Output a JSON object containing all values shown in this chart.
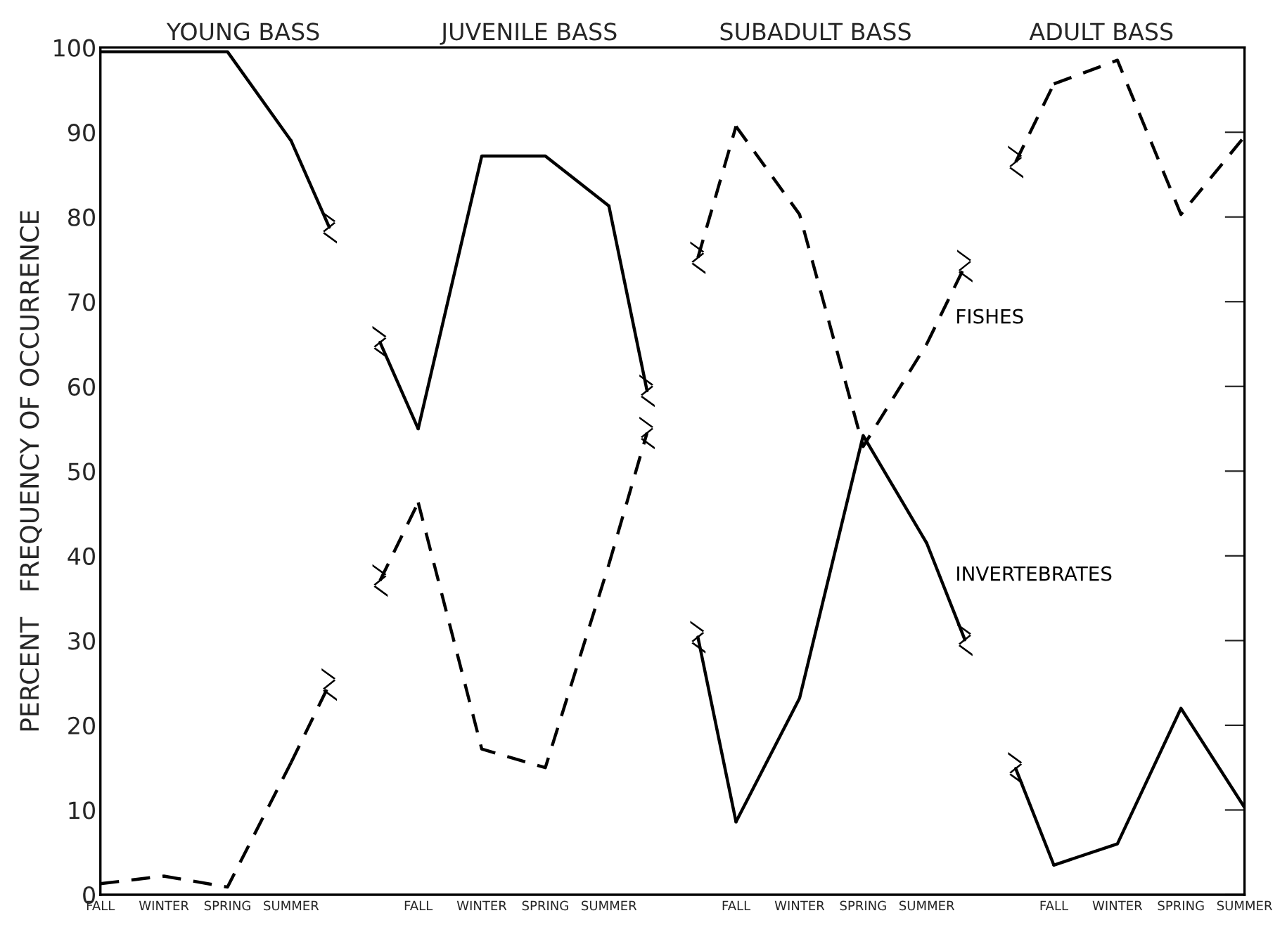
{
  "chart_data": {
    "type": "line",
    "ylabel": "PERCENT   FREQUENCY OF OCCURRENCE",
    "annotations": [
      "YOUNG BASS",
      "JUVENILE BASS",
      "SUBADULT BASS",
      "ADULT BASS"
    ],
    "categories": [
      "FALL",
      "WINTER",
      "SPRING",
      "SUMMER",
      null,
      "FALL",
      "WINTER",
      "SPRING",
      "SUMMER",
      null,
      "FALL",
      "WINTER",
      "SPRING",
      "SUMMER",
      null,
      "FALL",
      "WINTER",
      "SPRING",
      "SUMMER"
    ],
    "ylim": [
      0,
      100
    ],
    "yticks": [
      0,
      10,
      20,
      30,
      40,
      50,
      60,
      70,
      80,
      90,
      100
    ],
    "grid": false,
    "legend": false,
    "marker": "none",
    "series": [
      {
        "name": "INVERTEBRATES",
        "color": "#000000",
        "line_style": "solid",
        "values": [
          99.5,
          99.5,
          99.5,
          89,
          null,
          55,
          87.2,
          87.2,
          81.3,
          null,
          8.6,
          23.2,
          54.2,
          41.5,
          null,
          3.5,
          6.0,
          22.0,
          10.3
        ]
      },
      {
        "name": "FISHES",
        "color": "#000000",
        "line_style": "dashed",
        "values": [
          1.3,
          2.2,
          0.9,
          15.6,
          null,
          46.3,
          17.2,
          15.0,
          39,
          null,
          90.7,
          80.3,
          52.9,
          65,
          null,
          95.7,
          98.5,
          80.3,
          89.5
        ]
      }
    ]
  }
}
